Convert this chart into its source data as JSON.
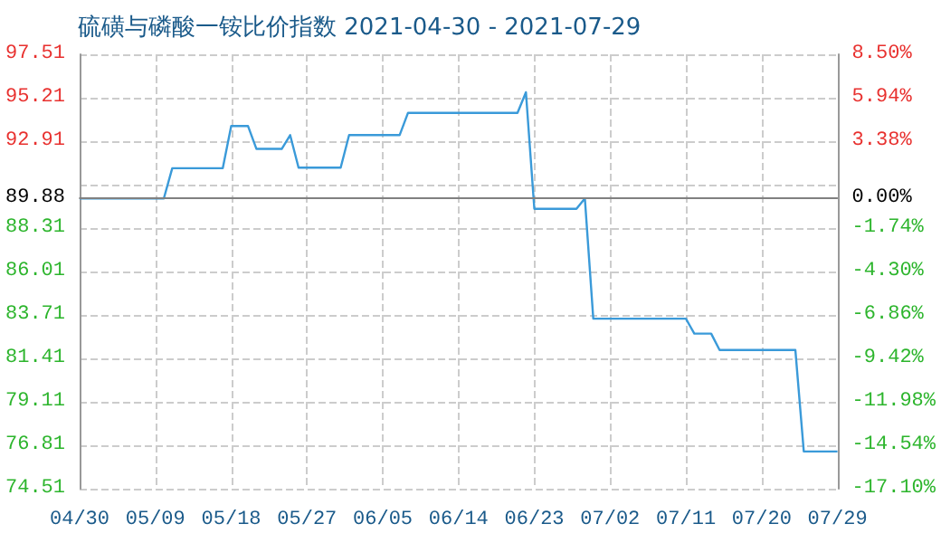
{
  "chart_data": {
    "type": "step",
    "title": "硫磺与磷酸一铵比价指数 2021-04-30 - 2021-07-29",
    "x": [
      "2021-04-30",
      "2021-05-10",
      "2021-05-11",
      "2021-05-17",
      "2021-05-18",
      "2021-05-20",
      "2021-05-21",
      "2021-05-24",
      "2021-05-25",
      "2021-05-26",
      "2021-05-31",
      "2021-06-01",
      "2021-06-07",
      "2021-06-08",
      "2021-06-21",
      "2021-06-22",
      "2021-06-23",
      "2021-06-28",
      "2021-06-29",
      "2021-06-30",
      "2021-07-11",
      "2021-07-12",
      "2021-07-14",
      "2021-07-15",
      "2021-07-24",
      "2021-07-25",
      "2021-07-29"
    ],
    "series": [
      {
        "color": "#3a9ad9",
        "values": [
          89.88,
          89.88,
          91.48,
          91.48,
          93.71,
          93.71,
          92.5,
          92.5,
          93.23,
          91.51,
          91.51,
          93.23,
          93.23,
          94.41,
          94.41,
          95.5,
          89.33,
          89.33,
          89.88,
          83.51,
          83.51,
          82.72,
          82.72,
          81.85,
          81.85,
          76.48,
          76.48
        ]
      }
    ],
    "xlim": [
      "2021-04-30",
      "2021-07-29"
    ],
    "xticks": [
      {
        "value": "2021-04-30",
        "label": "04/30"
      },
      {
        "value": "2021-05-09",
        "label": "05/09"
      },
      {
        "value": "2021-05-18",
        "label": "05/18"
      },
      {
        "value": "2021-05-27",
        "label": "05/27"
      },
      {
        "value": "2021-06-05",
        "label": "06/05"
      },
      {
        "value": "2021-06-14",
        "label": "06/14"
      },
      {
        "value": "2021-06-23",
        "label": "06/23"
      },
      {
        "value": "2021-07-02",
        "label": "07/02"
      },
      {
        "value": "2021-07-11",
        "label": "07/11"
      },
      {
        "value": "2021-07-20",
        "label": "07/20"
      },
      {
        "value": "2021-07-29",
        "label": "07/29"
      }
    ],
    "ylim": [
      74.51,
      97.51
    ],
    "yticks": [
      74.51,
      76.81,
      79.11,
      81.41,
      83.71,
      86.01,
      88.31,
      89.88,
      {
        "value": 90.61,
        "label": null
      },
      92.91,
      95.21,
      97.51
    ],
    "y2lim": [
      -17.1,
      8.5
    ],
    "y2ticks": [
      {
        "value": -17.1,
        "label": "-17.10%"
      },
      {
        "value": -14.54,
        "label": "-14.54%"
      },
      {
        "value": -11.98,
        "label": "-11.98%"
      },
      {
        "value": -9.42,
        "label": "-9.42%"
      },
      {
        "value": -6.86,
        "label": "-6.86%"
      },
      {
        "value": -4.3,
        "label": "-4.30%"
      },
      {
        "value": -1.74,
        "label": "-1.74%"
      },
      {
        "value": 0,
        "label": "0.00%"
      },
      {
        "value": 0.85,
        "label": null
      },
      {
        "value": 3.38,
        "label": "3.38%"
      },
      {
        "value": 5.94,
        "label": "5.94%"
      },
      {
        "value": 8.5,
        "label": "8.50%"
      }
    ],
    "ref_lines": [
      {
        "axis": "y",
        "value": 89.88,
        "color": "#808080"
      }
    ],
    "grid": true,
    "marker": "none",
    "line_style": "solid"
  }
}
